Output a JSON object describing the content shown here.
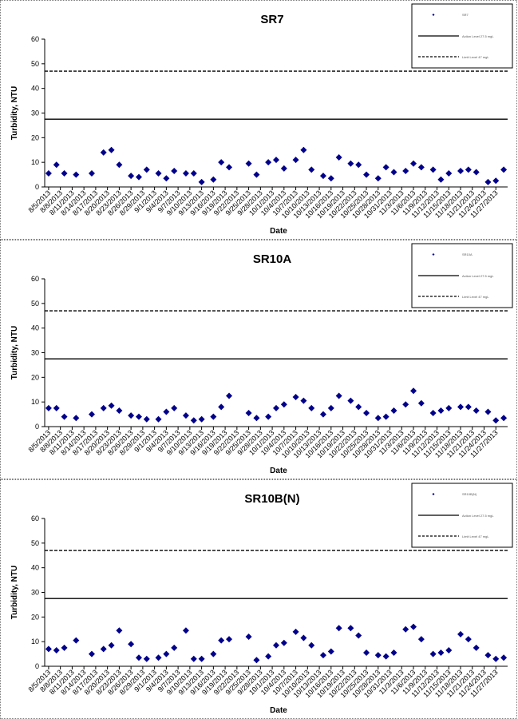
{
  "charts": [
    {
      "title": "SR7",
      "xlabel": "Date",
      "ylabel": "Turbidity, NTU",
      "ylim": [
        0,
        60
      ],
      "yticks": [
        0,
        10,
        20,
        30,
        40,
        50,
        60
      ],
      "xticks": [
        "8/5/2013",
        "8/8/2013",
        "8/11/2013",
        "8/14/2013",
        "8/17/2013",
        "8/20/2013",
        "8/23/2013",
        "8/26/2013",
        "8/29/2013",
        "9/1/2013",
        "9/4/2013",
        "9/7/2013",
        "9/10/2013",
        "9/13/2013",
        "9/16/2013",
        "9/19/2013",
        "9/22/2013",
        "9/25/2013",
        "9/28/2013",
        "10/1/2013",
        "10/4/2013",
        "10/7/2013",
        "10/10/2013",
        "10/13/2013",
        "10/16/2013",
        "10/19/2013",
        "10/22/2013",
        "10/25/2013",
        "10/28/2013",
        "10/31/2013",
        "11/3/2013",
        "11/6/2013",
        "11/9/2013",
        "11/12/2013",
        "11/15/2013",
        "11/18/2013",
        "11/21/2013",
        "11/24/2013",
        "11/27/2013"
      ],
      "legend": [
        "SR7",
        "Action Level 27.5 mgL",
        "Limit Level 47 mgL"
      ]
    },
    {
      "title": "SR10A",
      "xlabel": "Date",
      "ylabel": "Turbidity, NTU",
      "ylim": [
        0,
        60
      ],
      "yticks": [
        0,
        10,
        20,
        30,
        40,
        50,
        60
      ],
      "xticks": [
        "8/5/2013",
        "8/8/2013",
        "8/11/2013",
        "8/14/2013",
        "8/17/2013",
        "8/20/2013",
        "8/23/2013",
        "8/26/2013",
        "8/29/2013",
        "9/1/2013",
        "9/4/2013",
        "9/7/2013",
        "9/10/2013",
        "9/13/2013",
        "9/16/2013",
        "9/19/2013",
        "9/22/2013",
        "9/25/2013",
        "9/28/2013",
        "10/1/2013",
        "10/4/2013",
        "10/7/2013",
        "10/10/2013",
        "10/13/2013",
        "10/16/2013",
        "10/19/2013",
        "10/22/2013",
        "10/25/2013",
        "10/28/2013",
        "10/31/2013",
        "11/3/2013",
        "11/6/2013",
        "11/9/2013",
        "11/12/2013",
        "11/15/2013",
        "11/18/2013",
        "11/21/2013",
        "11/24/2013",
        "11/27/2013"
      ],
      "legend": [
        "SR10A",
        "Action Level 27.5 mgL",
        "Limit Level 47 mgL"
      ]
    },
    {
      "title": "SR10B(N)",
      "xlabel": "Date",
      "ylabel": "Turbidity, NTU",
      "ylim": [
        0,
        60
      ],
      "yticks": [
        0,
        10,
        20,
        30,
        40,
        50,
        60
      ],
      "xticks": [
        "8/5/2013",
        "8/8/2013",
        "8/11/2013",
        "8/14/2013",
        "8/17/2013",
        "8/20/2013",
        "8/23/2013",
        "8/26/2013",
        "8/29/2013",
        "9/1/2013",
        "9/4/2013",
        "9/7/2013",
        "9/10/2013",
        "9/13/2013",
        "9/16/2013",
        "9/19/2013",
        "9/22/2013",
        "9/25/2013",
        "9/28/2013",
        "10/1/2013",
        "10/4/2013",
        "10/7/2013",
        "10/10/2013",
        "10/13/2013",
        "10/16/2013",
        "10/19/2013",
        "10/22/2013",
        "10/25/2013",
        "10/28/2013",
        "10/31/2013",
        "11/3/2013",
        "11/6/2013",
        "11/9/2013",
        "11/12/2013",
        "11/15/2013",
        "11/18/2013",
        "11/21/2013",
        "11/24/2013",
        "11/27/2013"
      ],
      "legend": [
        "SR10B(N)",
        "Action Level 27.5 mgL",
        "Limit Level 47 mgL"
      ]
    }
  ],
  "colors": {
    "marker": "#00008B",
    "line": "#000000",
    "axis": "#000000"
  },
  "chart_data": [
    {
      "type": "scatter",
      "title": "SR7",
      "xlabel": "Date",
      "ylabel": "Turbidity, NTU",
      "ylim": [
        0,
        60
      ],
      "x_range": [
        "2013-08-05",
        "2013-11-29"
      ],
      "grid": false,
      "legend_position": "top-right",
      "series": [
        {
          "name": "SR7",
          "marker": "diamond",
          "points": [
            [
              "2013-08-05",
              5.5
            ],
            [
              "2013-08-07",
              9
            ],
            [
              "2013-08-09",
              5.5
            ],
            [
              "2013-08-12",
              5
            ],
            [
              "2013-08-16",
              5.5
            ],
            [
              "2013-08-19",
              14
            ],
            [
              "2013-08-21",
              15
            ],
            [
              "2013-08-23",
              9
            ],
            [
              "2013-08-26",
              4.5
            ],
            [
              "2013-08-28",
              4
            ],
            [
              "2013-08-30",
              7
            ],
            [
              "2013-09-02",
              5.5
            ],
            [
              "2013-09-04",
              3.5
            ],
            [
              "2013-09-06",
              6.5
            ],
            [
              "2013-09-09",
              5.5
            ],
            [
              "2013-09-11",
              5.5
            ],
            [
              "2013-09-13",
              2
            ],
            [
              "2013-09-16",
              3
            ],
            [
              "2013-09-18",
              10
            ],
            [
              "2013-09-20",
              8
            ],
            [
              "2013-09-25",
              9.5
            ],
            [
              "2013-09-27",
              5
            ],
            [
              "2013-09-30",
              10
            ],
            [
              "2013-10-02",
              11
            ],
            [
              "2013-10-04",
              7.5
            ],
            [
              "2013-10-07",
              11
            ],
            [
              "2013-10-09",
              15
            ],
            [
              "2013-10-11",
              7
            ],
            [
              "2013-10-14",
              4.5
            ],
            [
              "2013-10-16",
              3.5
            ],
            [
              "2013-10-18",
              12
            ],
            [
              "2013-10-21",
              9.5
            ],
            [
              "2013-10-23",
              9
            ],
            [
              "2013-10-25",
              5
            ],
            [
              "2013-10-28",
              3.5
            ],
            [
              "2013-10-30",
              8
            ],
            [
              "2013-11-01",
              6
            ],
            [
              "2013-11-04",
              6.5
            ],
            [
              "2013-11-06",
              9.5
            ],
            [
              "2013-11-08",
              8
            ],
            [
              "2013-11-11",
              7
            ],
            [
              "2013-11-13",
              3
            ],
            [
              "2013-11-15",
              5.5
            ],
            [
              "2013-11-18",
              6.5
            ],
            [
              "2013-11-20",
              7
            ],
            [
              "2013-11-22",
              6
            ],
            [
              "2013-11-25",
              2
            ],
            [
              "2013-11-27",
              2.5
            ],
            [
              "2013-11-29",
              7
            ]
          ]
        },
        {
          "name": "Action Level 27.5 mgL",
          "style": "solid",
          "value": 27.5
        },
        {
          "name": "Limit Level 47 mgL",
          "style": "dashed",
          "value": 47
        }
      ]
    },
    {
      "type": "scatter",
      "title": "SR10A",
      "xlabel": "Date",
      "ylabel": "Turbidity, NTU",
      "ylim": [
        0,
        60
      ],
      "x_range": [
        "2013-08-05",
        "2013-11-29"
      ],
      "grid": false,
      "legend_position": "top-right",
      "series": [
        {
          "name": "SR10A",
          "marker": "diamond",
          "points": [
            [
              "2013-08-05",
              7.5
            ],
            [
              "2013-08-07",
              7.5
            ],
            [
              "2013-08-09",
              4
            ],
            [
              "2013-08-12",
              3.5
            ],
            [
              "2013-08-16",
              5
            ],
            [
              "2013-08-19",
              7.5
            ],
            [
              "2013-08-21",
              8.5
            ],
            [
              "2013-08-23",
              6.5
            ],
            [
              "2013-08-26",
              4.5
            ],
            [
              "2013-08-28",
              4
            ],
            [
              "2013-08-30",
              3
            ],
            [
              "2013-09-02",
              3
            ],
            [
              "2013-09-04",
              6
            ],
            [
              "2013-09-06",
              7.5
            ],
            [
              "2013-09-09",
              4.5
            ],
            [
              "2013-09-11",
              2.5
            ],
            [
              "2013-09-13",
              3
            ],
            [
              "2013-09-16",
              4
            ],
            [
              "2013-09-18",
              8
            ],
            [
              "2013-09-20",
              12.5
            ],
            [
              "2013-09-25",
              5.5
            ],
            [
              "2013-09-27",
              3.5
            ],
            [
              "2013-09-30",
              4
            ],
            [
              "2013-10-02",
              7.5
            ],
            [
              "2013-10-04",
              9
            ],
            [
              "2013-10-07",
              12
            ],
            [
              "2013-10-09",
              10.5
            ],
            [
              "2013-10-11",
              7.5
            ],
            [
              "2013-10-14",
              5
            ],
            [
              "2013-10-16",
              7.5
            ],
            [
              "2013-10-18",
              12.5
            ],
            [
              "2013-10-21",
              10.5
            ],
            [
              "2013-10-23",
              8
            ],
            [
              "2013-10-25",
              5.5
            ],
            [
              "2013-10-28",
              3.5
            ],
            [
              "2013-10-30",
              4
            ],
            [
              "2013-11-01",
              6.5
            ],
            [
              "2013-11-04",
              9
            ],
            [
              "2013-11-06",
              14.5
            ],
            [
              "2013-11-08",
              9.5
            ],
            [
              "2013-11-11",
              5.5
            ],
            [
              "2013-11-13",
              6.5
            ],
            [
              "2013-11-15",
              7.5
            ],
            [
              "2013-11-18",
              8
            ],
            [
              "2013-11-20",
              8
            ],
            [
              "2013-11-22",
              6.5
            ],
            [
              "2013-11-25",
              6
            ],
            [
              "2013-11-27",
              2.5
            ],
            [
              "2013-11-29",
              3.5
            ]
          ]
        },
        {
          "name": "Action Level 27.5 mgL",
          "style": "solid",
          "value": 27.5
        },
        {
          "name": "Limit Level 47 mgL",
          "style": "dashed",
          "value": 47
        }
      ]
    },
    {
      "type": "scatter",
      "title": "SR10B(N)",
      "xlabel": "Date",
      "ylabel": "Turbidity, NTU",
      "ylim": [
        0,
        60
      ],
      "x_range": [
        "2013-08-05",
        "2013-11-29"
      ],
      "grid": false,
      "legend_position": "top-right",
      "series": [
        {
          "name": "SR10B(N)",
          "marker": "diamond",
          "points": [
            [
              "2013-08-05",
              7
            ],
            [
              "2013-08-07",
              6.5
            ],
            [
              "2013-08-09",
              7.5
            ],
            [
              "2013-08-12",
              10.5
            ],
            [
              "2013-08-16",
              5
            ],
            [
              "2013-08-19",
              7
            ],
            [
              "2013-08-21",
              8.5
            ],
            [
              "2013-08-23",
              14.5
            ],
            [
              "2013-08-26",
              9
            ],
            [
              "2013-08-28",
              3.5
            ],
            [
              "2013-08-30",
              3
            ],
            [
              "2013-09-02",
              3.5
            ],
            [
              "2013-09-04",
              5
            ],
            [
              "2013-09-06",
              7.5
            ],
            [
              "2013-09-09",
              14.5
            ],
            [
              "2013-09-11",
              3
            ],
            [
              "2013-09-13",
              3
            ],
            [
              "2013-09-16",
              5
            ],
            [
              "2013-09-18",
              10.5
            ],
            [
              "2013-09-20",
              11
            ],
            [
              "2013-09-25",
              12
            ],
            [
              "2013-09-27",
              2.5
            ],
            [
              "2013-09-30",
              4
            ],
            [
              "2013-10-02",
              8.5
            ],
            [
              "2013-10-04",
              9.5
            ],
            [
              "2013-10-07",
              14
            ],
            [
              "2013-10-09",
              11.5
            ],
            [
              "2013-10-11",
              8.5
            ],
            [
              "2013-10-14",
              4.5
            ],
            [
              "2013-10-16",
              6
            ],
            [
              "2013-10-18",
              15.5
            ],
            [
              "2013-10-21",
              15.5
            ],
            [
              "2013-10-23",
              12.5
            ],
            [
              "2013-10-25",
              5.5
            ],
            [
              "2013-10-28",
              4.5
            ],
            [
              "2013-10-30",
              4
            ],
            [
              "2013-11-01",
              5.5
            ],
            [
              "2013-11-04",
              15
            ],
            [
              "2013-11-06",
              16
            ],
            [
              "2013-11-08",
              11
            ],
            [
              "2013-11-11",
              5
            ],
            [
              "2013-11-13",
              5.5
            ],
            [
              "2013-11-15",
              6.5
            ],
            [
              "2013-11-18",
              13
            ],
            [
              "2013-11-20",
              11
            ],
            [
              "2013-11-22",
              7.5
            ],
            [
              "2013-11-25",
              4.5
            ],
            [
              "2013-11-27",
              3
            ],
            [
              "2013-11-29",
              3.5
            ]
          ]
        },
        {
          "name": "Action Level 27.5 mgL",
          "style": "solid",
          "value": 27.5
        },
        {
          "name": "Limit Level 47 mgL",
          "style": "dashed",
          "value": 47
        }
      ]
    }
  ]
}
